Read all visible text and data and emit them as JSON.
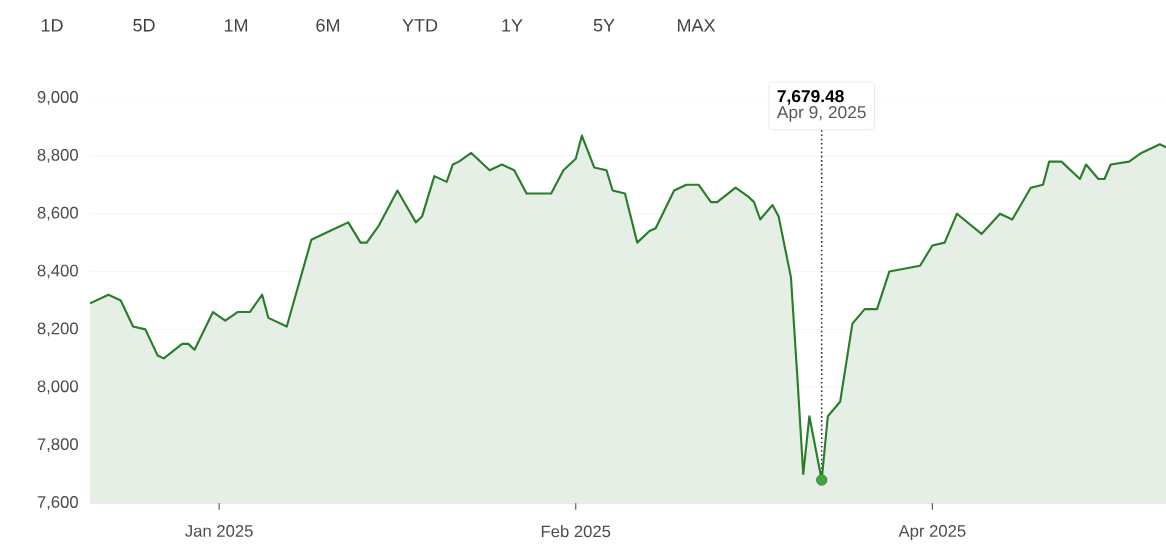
{
  "chart_data": {
    "type": "area",
    "x": [
      "2024-12-11",
      "2024-12-14",
      "2024-12-16",
      "2024-12-18",
      "2024-12-20",
      "2024-12-22",
      "2024-12-23",
      "2024-12-26",
      "2024-12-27",
      "2024-12-28",
      "2024-12-31",
      "2025-01-02",
      "2025-01-04",
      "2025-01-06",
      "2025-01-08",
      "2025-01-09",
      "2025-01-12",
      "2025-01-16",
      "2025-01-19",
      "2025-01-22",
      "2025-01-24",
      "2025-01-25",
      "2025-01-27",
      "2025-01-30",
      "2025-02-02",
      "2025-02-03",
      "2025-02-05",
      "2025-02-07",
      "2025-02-08",
      "2025-02-09",
      "2025-02-11",
      "2025-02-14",
      "2025-02-16",
      "2025-02-18",
      "2025-02-20",
      "2025-02-24",
      "2025-02-26",
      "2025-02-28",
      "2025-03-01",
      "2025-03-03",
      "2025-03-05",
      "2025-03-06",
      "2025-03-08",
      "2025-03-10",
      "2025-03-12",
      "2025-03-13",
      "2025-03-16",
      "2025-03-18",
      "2025-03-20",
      "2025-03-22",
      "2025-03-23",
      "2025-03-26",
      "2025-03-28",
      "2025-03-29",
      "2025-03-30",
      "2025-04-01",
      "2025-04-02",
      "2025-04-04",
      "2025-04-05",
      "2025-04-06",
      "2025-04-07",
      "2025-04-09",
      "2025-04-10",
      "2025-04-12",
      "2025-04-14",
      "2025-04-16",
      "2025-04-18",
      "2025-04-20",
      "2025-04-25",
      "2025-04-27",
      "2025-04-29",
      "2025-05-01",
      "2025-05-05",
      "2025-05-08",
      "2025-05-10",
      "2025-05-13",
      "2025-05-15",
      "2025-05-16",
      "2025-05-18",
      "2025-05-21",
      "2025-05-22",
      "2025-05-24",
      "2025-05-25",
      "2025-05-26",
      "2025-05-29",
      "2025-05-31",
      "2025-06-03",
      "2025-06-04"
    ],
    "series": [
      {
        "color": "#2a7d2a",
        "values": [
          8290,
          8320,
          8300,
          8210,
          8200,
          8110,
          8100,
          8150,
          8150,
          8130,
          8260,
          8230,
          8260,
          8260,
          8320,
          8240,
          8210,
          8510,
          8540,
          8570,
          8500,
          8500,
          8560,
          8680,
          8570,
          8590,
          8730,
          8710,
          8770,
          8780,
          8810,
          8750,
          8770,
          8750,
          8670,
          8670,
          8750,
          8790,
          8870,
          8760,
          8750,
          8680,
          8670,
          8500,
          8540,
          8550,
          8680,
          8700,
          8700,
          8640,
          8640,
          8690,
          8660,
          8640,
          8580,
          8630,
          8590,
          8380,
          8050,
          7700,
          7900,
          7679.48,
          7900,
          7950,
          8220,
          8270,
          8270,
          8400,
          8420,
          8490,
          8500,
          8600,
          8530,
          8600,
          8580,
          8690,
          8700,
          8780,
          8780,
          8720,
          8770,
          8720,
          8720,
          8770,
          8780,
          8810,
          8840,
          8830
        ]
      },
      {
        "type": "scatter",
        "color": "#3fa33f",
        "marker": "circle",
        "x": [
          "2025-04-09"
        ],
        "values": [
          7679.48
        ]
      }
    ],
    "xlim": [
      "2024-12-11",
      "2025-06-04"
    ],
    "xticks": [
      {
        "value": "2025-01-01",
        "label": "Jan 2025"
      },
      {
        "value": "2025-02-28",
        "label": "Feb 2025"
      },
      {
        "value": "2025-04-27",
        "label": "Apr 2025"
      }
    ],
    "ylim": [
      7600,
      9000
    ],
    "yticks": [
      {
        "value": 7600,
        "label": "7,600"
      },
      {
        "value": 7800,
        "label": "7,800"
      },
      {
        "value": 8000,
        "label": "8,000"
      },
      {
        "value": 8200,
        "label": "8,200"
      },
      {
        "value": 8400,
        "label": "8,400"
      },
      {
        "value": 8600,
        "label": "8,600"
      },
      {
        "value": 8800,
        "label": "8,800"
      },
      {
        "value": 9000,
        "label": "9,000"
      }
    ],
    "grid": "y",
    "ref_lines": [
      {
        "axis": "x",
        "value": "2025-04-09",
        "color": "#333333",
        "line_style": "dotted"
      }
    ],
    "annotations": [
      "1D",
      "5D",
      "1M",
      "6M",
      "YTD",
      "1Y",
      "5Y",
      "MAX",
      {
        "text": "7,679.48",
        "x": "2025-04-09"
      },
      {
        "text": "Apr 9, 2025",
        "x": "2025-04-09"
      }
    ]
  }
}
